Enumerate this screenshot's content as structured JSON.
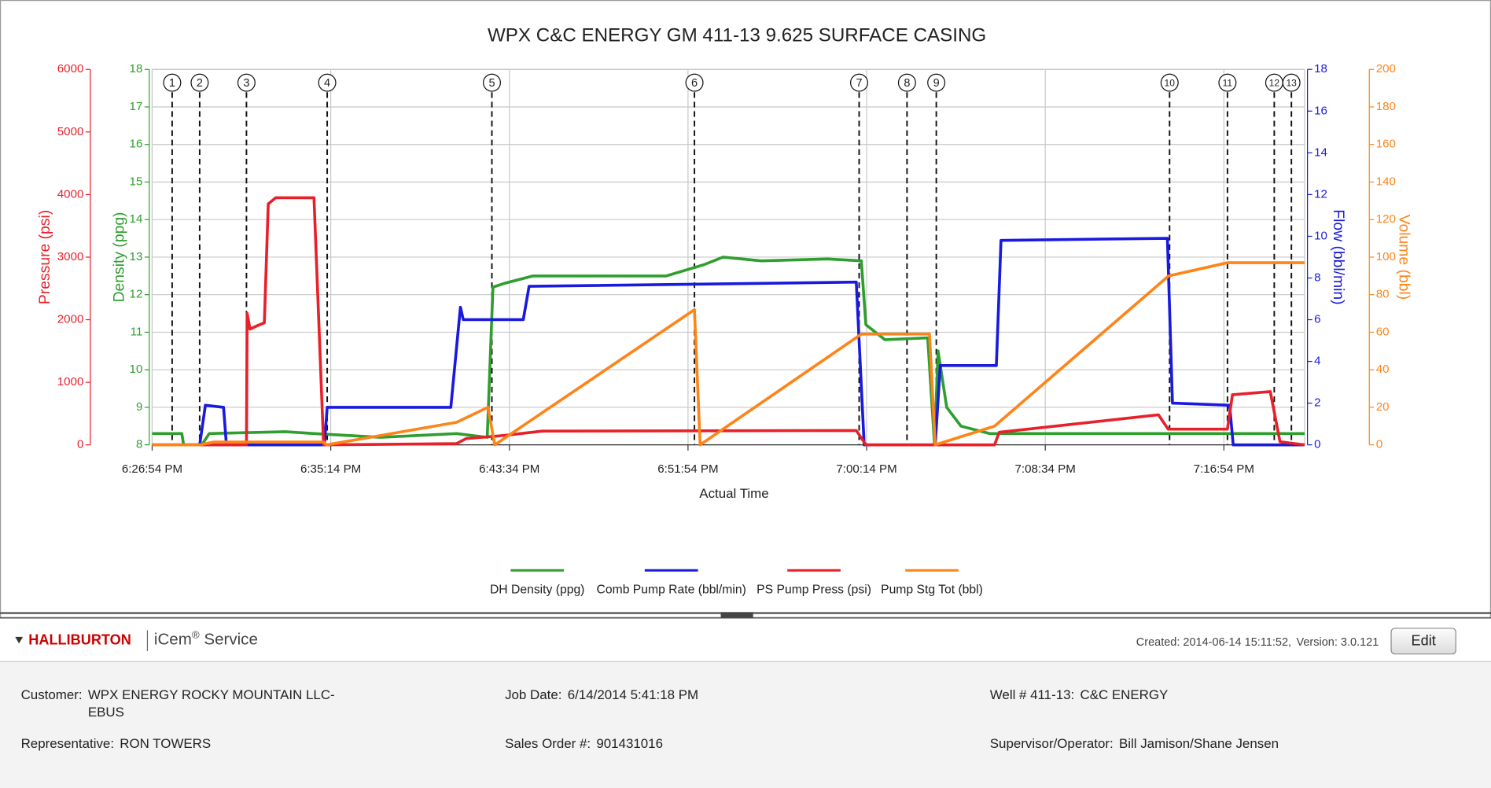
{
  "chart_data": {
    "type": "line",
    "title": "WPX C&C ENERGY GM 411-13 9.625 SURFACE CASING",
    "xlabel": "Actual Time",
    "xlim": [
      "6:26:54 PM",
      "7:20:40 PM"
    ],
    "xticks": [
      "6:26:54 PM",
      "6:35:14 PM",
      "6:43:34 PM",
      "6:51:54 PM",
      "7:00:14 PM",
      "7:08:34 PM",
      "7:16:54 PM"
    ],
    "grid": true,
    "axes": [
      {
        "label": "Pressure (psi)",
        "color": "#e8202a",
        "ylim": [
          0,
          6000
        ],
        "yticks": [
          0,
          1000,
          2000,
          3000,
          4000,
          5000,
          6000
        ]
      },
      {
        "label": "Density (ppg)",
        "color": "#2e9e2e",
        "ylim": [
          8,
          18
        ],
        "yticks": [
          8,
          9,
          10,
          11,
          12,
          13,
          14,
          15,
          16,
          17,
          18
        ]
      },
      {
        "label": "Flow (bbl/min)",
        "color": "#1a1adf",
        "ylim": [
          0,
          18
        ],
        "yticks": [
          0,
          2,
          4,
          6,
          8,
          10,
          12,
          14,
          16,
          18
        ]
      },
      {
        "label": "Volume (bbl)",
        "color": "#ff8418",
        "ylim": [
          0,
          200
        ],
        "yticks": [
          0,
          20,
          40,
          60,
          80,
          100,
          120,
          140,
          160,
          180,
          200
        ]
      }
    ],
    "events": [
      {
        "label": "1",
        "x": "6:27:50 PM"
      },
      {
        "label": "2",
        "x": "6:29:07 PM"
      },
      {
        "label": "3",
        "x": "6:31:18 PM"
      },
      {
        "label": "4",
        "x": "6:35:04 PM"
      },
      {
        "label": "5",
        "x": "6:42:45 PM"
      },
      {
        "label": "6",
        "x": "6:52:12 PM"
      },
      {
        "label": "7",
        "x": "6:59:53 PM"
      },
      {
        "label": "8",
        "x": "7:02:07 PM"
      },
      {
        "label": "9",
        "x": "7:03:29 PM"
      },
      {
        "label": "10",
        "x": "7:14:22 PM"
      },
      {
        "label": "11",
        "x": "7:17:04 PM"
      },
      {
        "label": "12",
        "x": "7:19:15 PM"
      },
      {
        "label": "13",
        "x": "7:20:03 PM"
      }
    ],
    "series": [
      {
        "name": "DH Density (ppg)",
        "color": "#2e9e2e",
        "axis": 1,
        "x": [
          "6:26:54 PM",
          "6:28:17 PM",
          "6:28:22 PM",
          "6:29:13 PM",
          "6:29:34 PM",
          "6:33:07 PM",
          "6:34:27 PM",
          "6:37:33 PM",
          "6:41:06 PM",
          "6:42:32 PM",
          "6:42:48 PM",
          "6:43:20 PM",
          "6:44:40 PM",
          "6:50:53 PM",
          "6:52:39 PM",
          "6:53:32 PM",
          "6:55:19 PM",
          "6:58:25 PM",
          "6:59:59 PM",
          "7:00:12 PM",
          "7:01:05 PM",
          "7:03:05 PM",
          "7:03:24 PM",
          "7:03:34 PM",
          "7:03:58 PM",
          "7:04:38 PM",
          "7:05:58 PM",
          "7:20:40 PM"
        ],
        "values": [
          8.3,
          8.3,
          8,
          8,
          8.3,
          8.35,
          8.3,
          8.2,
          8.3,
          8.2,
          12.2,
          12.3,
          12.5,
          12.5,
          12.8,
          13,
          12.9,
          12.95,
          12.9,
          11.2,
          10.8,
          10.85,
          8,
          10.5,
          9,
          8.5,
          8.3,
          8.3
        ]
      },
      {
        "name": "Comb Pump Rate (bbl/min)",
        "color": "#1a1adf",
        "axis": 2,
        "x": [
          "6:26:54 PM",
          "6:29:07 PM",
          "6:29:23 PM",
          "6:30:14 PM",
          "6:30:22 PM",
          "6:34:56 PM",
          "6:35:04 PM",
          "6:40:50 PM",
          "6:41:17 PM",
          "6:41:25 PM",
          "6:44:13 PM",
          "6:44:29 PM",
          "6:59:45 PM",
          "7:00:07 PM",
          "7:03:26 PM",
          "7:03:40 PM",
          "7:06:17 PM",
          "7:06:30 PM",
          "7:14:16 PM",
          "7:14:30 PM",
          "7:17:10 PM",
          "7:17:20 PM",
          "7:20:40 PM"
        ],
        "values": [
          0,
          0,
          1.9,
          1.8,
          0,
          0,
          1.8,
          1.8,
          6.6,
          6,
          6,
          7.6,
          7.8,
          0,
          0,
          3.8,
          3.8,
          9.8,
          9.9,
          2,
          1.9,
          0,
          0
        ]
      },
      {
        "name": "PS Pump Press (psi)",
        "color": "#e8202a",
        "axis": 0,
        "x": [
          "6:26:54 PM",
          "6:31:18 PM",
          "6:31:20 PM",
          "6:31:28 PM",
          "6:31:47 PM",
          "6:32:08 PM",
          "6:32:19 PM",
          "6:32:40 PM",
          "6:34:27 PM",
          "6:34:54 PM",
          "6:41:06 PM",
          "6:41:33 PM",
          "6:43:20 PM",
          "6:45:06 PM",
          "6:59:45 PM",
          "7:00:12 PM",
          "7:06:12 PM",
          "7:06:25 PM",
          "7:13:51 PM",
          "7:14:18 PM",
          "7:17:04 PM",
          "7:17:18 PM",
          "7:19:04 PM",
          "7:19:31 PM",
          "7:20:40 PM"
        ],
        "values": [
          0,
          0,
          2100,
          1850,
          1900,
          1950,
          3850,
          3950,
          3950,
          0,
          20,
          100,
          150,
          220,
          230,
          0,
          0,
          200,
          480,
          250,
          250,
          800,
          850,
          50,
          0
        ]
      },
      {
        "name": "Pump Stg Tot (bbl)",
        "color": "#ff8418",
        "axis": 3,
        "x": [
          "6:26:54 PM",
          "6:29:07 PM",
          "6:29:47 PM",
          "6:34:54 PM",
          "6:35:02 PM",
          "6:41:06 PM",
          "6:42:34 PM",
          "6:42:53 PM",
          "6:52:12 PM",
          "6:52:28 PM",
          "6:59:59 PM",
          "7:03:10 PM",
          "7:03:26 PM",
          "7:06:12 PM",
          "7:14:19 PM",
          "7:17:04 PM",
          "7:20:40 PM"
        ],
        "values": [
          0,
          0,
          1.5,
          1.5,
          0,
          12,
          20,
          0,
          72,
          0,
          59,
          59,
          0,
          10,
          90,
          97,
          97
        ]
      }
    ]
  },
  "header": {
    "brand": "HALLIBURTON",
    "service": "iCem",
    "service_mark": "®",
    "service_suffix": " Service",
    "created": "Created: 2014-06-14 15:11:52,",
    "version": "Version: 3.0.121",
    "button": "Edit"
  },
  "info": [
    {
      "label": "Customer:",
      "lines": [
        "WPX ENERGY ROCKY MOUNTAIN LLC-",
        "EBUS"
      ]
    },
    {
      "label": "Job Date:",
      "lines": [
        "6/14/2014 5:41:18 PM"
      ]
    },
    {
      "label": "Well # 411-13:",
      "lines": [
        "C&C ENERGY"
      ]
    },
    {
      "label": "Representative:",
      "lines": [
        "RON TOWERS"
      ]
    },
    {
      "label": "Sales Order #:",
      "lines": [
        "901431016"
      ]
    },
    {
      "label": "Supervisor/Operator:",
      "lines": [
        "Bill Jamison/Shane Jensen"
      ]
    }
  ]
}
